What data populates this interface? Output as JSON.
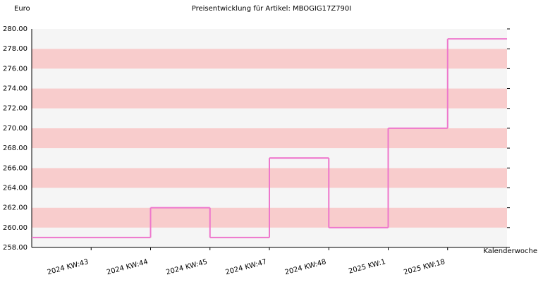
{
  "chart_data": {
    "type": "step-line",
    "title": "Preisentwicklung für Artikel: MBOGIG17Z790I",
    "y_label": "Euro",
    "x_label": "Kalenderwoche",
    "categories": [
      "2024 KW:43",
      "2024 KW:44",
      "2024 KW:45",
      "2024 KW:47",
      "2024 KW:48",
      "2025 KW:1",
      "2025 KW:18"
    ],
    "values": [
      259,
      262,
      259,
      267,
      260,
      270,
      279
    ],
    "color": "#ee77cc",
    "band_colors": [
      "#f5f5f5",
      "#f8cccc"
    ],
    "ylim": [
      258,
      280
    ],
    "yticks": [
      {
        "value": 258,
        "label": "258.00"
      },
      {
        "value": 260,
        "label": "260.00"
      },
      {
        "value": 262,
        "label": "262.00"
      },
      {
        "value": 264,
        "label": "264.00"
      },
      {
        "value": 266,
        "label": "266.00"
      },
      {
        "value": 268,
        "label": "268.00"
      },
      {
        "value": 270,
        "label": "270.00"
      },
      {
        "value": 272,
        "label": "272.00"
      },
      {
        "value": 274,
        "label": "274.00"
      },
      {
        "value": 276,
        "label": "276.00"
      },
      {
        "value": 278,
        "label": "278.00"
      },
      {
        "value": 280,
        "label": "280.00"
      }
    ]
  }
}
